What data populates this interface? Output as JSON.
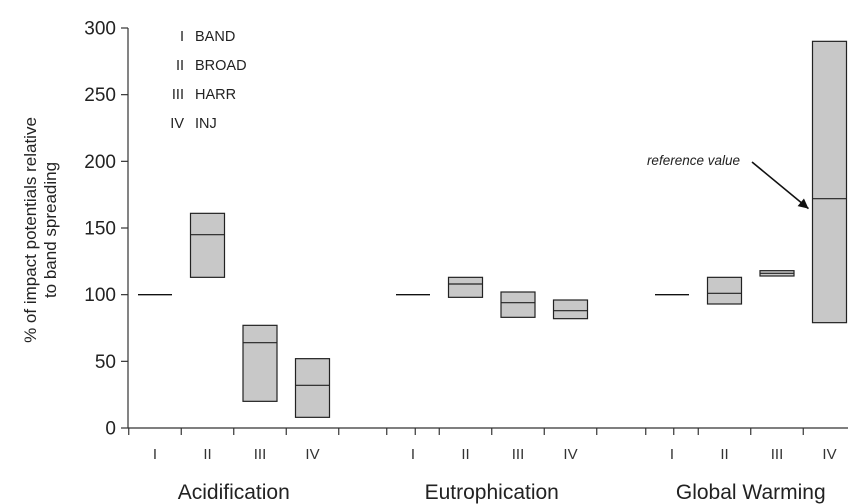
{
  "chart_data": {
    "type": "floating-bar",
    "ylabel_lines": [
      "% of impact potentials relative",
      "to band spreading"
    ],
    "ylim": [
      0,
      300
    ],
    "yticks": [
      0,
      50,
      100,
      150,
      200,
      250,
      300
    ],
    "legend": [
      {
        "code": "I",
        "label": "BAND"
      },
      {
        "code": "II",
        "label": "BROAD"
      },
      {
        "code": "III",
        "label": "HARR"
      },
      {
        "code": "IV",
        "label": "INJ"
      }
    ],
    "groups": [
      {
        "name": "Acidification",
        "bars": [
          {
            "code": "I",
            "low": 100,
            "mid": 100,
            "high": 100
          },
          {
            "code": "II",
            "low": 113,
            "mid": 145,
            "high": 161
          },
          {
            "code": "III",
            "low": 20,
            "mid": 64,
            "high": 77
          },
          {
            "code": "IV",
            "low": 8,
            "mid": 32,
            "high": 52
          }
        ]
      },
      {
        "name": "Eutrophication",
        "bars": [
          {
            "code": "I",
            "low": 100,
            "mid": 100,
            "high": 100
          },
          {
            "code": "II",
            "low": 98,
            "mid": 108,
            "high": 113
          },
          {
            "code": "III",
            "low": 83,
            "mid": 94,
            "high": 102
          },
          {
            "code": "IV",
            "low": 82,
            "mid": 88,
            "high": 96
          }
        ]
      },
      {
        "name": "Global Warming",
        "bars": [
          {
            "code": "I",
            "low": 100,
            "mid": 100,
            "high": 100
          },
          {
            "code": "II",
            "low": 93,
            "mid": 101,
            "high": 113
          },
          {
            "code": "III",
            "low": 114,
            "mid": 116,
            "high": 118
          },
          {
            "code": "IV",
            "low": 79,
            "mid": 172,
            "high": 290
          }
        ]
      }
    ],
    "annotation": {
      "text": "reference value",
      "group": 2,
      "bar": 3
    }
  }
}
